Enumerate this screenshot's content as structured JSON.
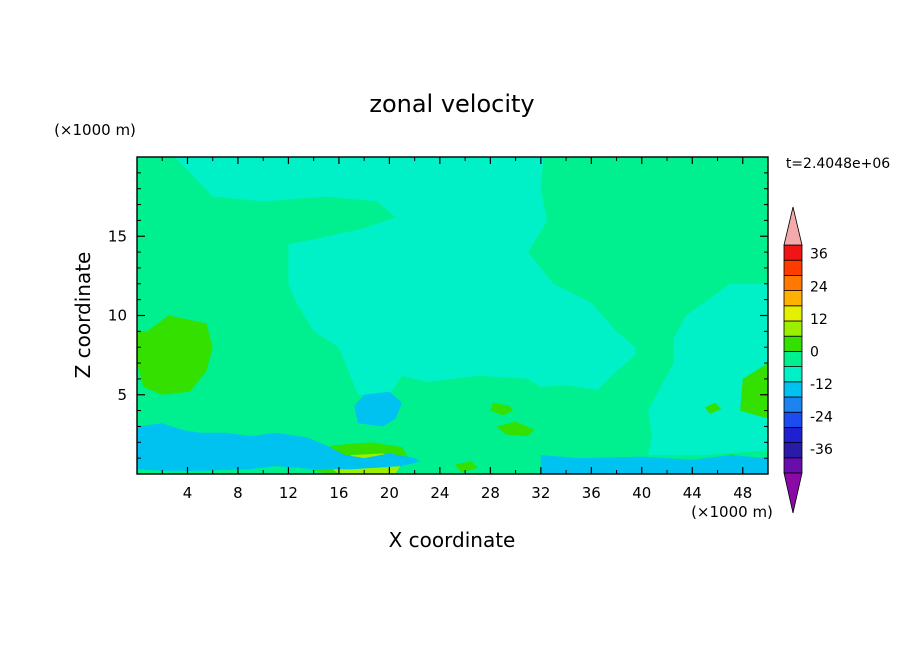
{
  "chart_data": {
    "type": "heatmap",
    "title": "zonal velocity",
    "xlabel": "X coordinate",
    "ylabel": "Z coordinate",
    "x_unit": "(×1000 m)",
    "y_unit": "(×1000 m)",
    "time_label": "t=2.4048e+06",
    "xlim": [
      0,
      50
    ],
    "ylim": [
      0,
      20
    ],
    "x_ticks": [
      4,
      8,
      12,
      16,
      20,
      24,
      28,
      32,
      36,
      40,
      44,
      48
    ],
    "y_ticks": [
      5,
      10,
      15
    ],
    "colorbar": {
      "levels": [
        -42,
        -36,
        -30,
        -24,
        -18,
        -12,
        -6,
        0,
        6,
        12,
        18,
        24,
        30,
        36,
        42
      ],
      "labels": [
        36,
        24,
        12,
        0,
        -12,
        -24,
        -36
      ],
      "colors": [
        "#6a0dad",
        "#2a1aa8",
        "#2020d0",
        "#1a4cf0",
        "#1b84f0",
        "#00c2f0",
        "#00f0c8",
        "#00f090",
        "#33e000",
        "#9af000",
        "#e4f000",
        "#ffb000",
        "#ff7800",
        "#ff3c00",
        "#f01414"
      ],
      "over_color": "#f4aaaa",
      "under_color": "#8a0aa8"
    },
    "regions": [
      {
        "level": 0,
        "polys": [
          [
            [
              0,
              20
            ],
            [
              50,
              20
            ],
            [
              50,
              0
            ],
            [
              0,
              0
            ]
          ]
        ]
      },
      {
        "level": -6,
        "polys": [
          [
            [
              3,
              20
            ],
            [
              6,
              17.5
            ],
            [
              10,
              17.2
            ],
            [
              15,
              17.5
            ],
            [
              19,
              17.2
            ],
            [
              20.5,
              16.2
            ],
            [
              18,
              15.5
            ],
            [
              14,
              14.8
            ],
            [
              12,
              14.5
            ],
            [
              12,
              12
            ],
            [
              12.5,
              11
            ],
            [
              14,
              9
            ],
            [
              16,
              8
            ],
            [
              17,
              6
            ],
            [
              17.5,
              5
            ],
            [
              20,
              5
            ],
            [
              21,
              6.2
            ],
            [
              23,
              5.8
            ],
            [
              27,
              6.2
            ],
            [
              31,
              6
            ],
            [
              32,
              5.5
            ],
            [
              34,
              5.6
            ],
            [
              36.5,
              5.3
            ],
            [
              38,
              6.5
            ],
            [
              39.5,
              7.5
            ],
            [
              39.5,
              8
            ],
            [
              38,
              9
            ],
            [
              36,
              10.8
            ],
            [
              33,
              12
            ],
            [
              31,
              14
            ],
            [
              32.5,
              16
            ],
            [
              32,
              18
            ],
            [
              32.2,
              20
            ]
          ],
          [
            [
              40.5,
              1.2
            ],
            [
              40.8,
              2.5
            ],
            [
              40.5,
              4
            ],
            [
              41.5,
              5.5
            ],
            [
              42.5,
              7
            ],
            [
              42.5,
              8.5
            ],
            [
              43.5,
              10
            ],
            [
              47,
              12
            ],
            [
              50,
              12
            ],
            [
              50,
              1.5
            ],
            [
              45,
              1.2
            ]
          ]
        ]
      },
      {
        "level": 6,
        "polys": [
          [
            [
              0.8,
              9
            ],
            [
              2.5,
              10
            ],
            [
              5.5,
              9.5
            ],
            [
              6,
              8
            ],
            [
              5.5,
              6.5
            ],
            [
              4.2,
              5.2
            ],
            [
              2,
              5
            ],
            [
              0.5,
              5.5
            ],
            [
              0,
              7
            ],
            [
              0,
              9
            ]
          ],
          [
            [
              48,
              6
            ],
            [
              50,
              7
            ],
            [
              50,
              3.5
            ],
            [
              47.8,
              4
            ]
          ],
          [
            [
              46.5,
              1
            ],
            [
              47.2,
              1.3
            ],
            [
              47.5,
              1
            ],
            [
              47.3,
              0.8
            ]
          ],
          [
            [
              13.5,
              1
            ],
            [
              15.5,
              1.8
            ],
            [
              18.5,
              2
            ],
            [
              21,
              1.7
            ],
            [
              21.5,
              1
            ],
            [
              20.8,
              0.5
            ],
            [
              18,
              0
            ],
            [
              15,
              0
            ],
            [
              13,
              0.5
            ]
          ],
          [
            [
              28.2,
              4.5
            ],
            [
              29.5,
              4.3
            ],
            [
              29.8,
              4
            ],
            [
              29,
              3.7
            ],
            [
              28,
              4
            ]
          ],
          [
            [
              28.5,
              3
            ],
            [
              30,
              3.3
            ],
            [
              31.5,
              2.8
            ],
            [
              31,
              2.4
            ],
            [
              29.2,
              2.5
            ]
          ],
          [
            [
              25.2,
              0.6
            ],
            [
              26.5,
              0.8
            ],
            [
              27,
              0.4
            ],
            [
              25.7,
              0.1
            ]
          ],
          [
            [
              45,
              4.2
            ],
            [
              45.8,
              4.5
            ],
            [
              46.3,
              4.1
            ],
            [
              45.4,
              3.8
            ]
          ]
        ]
      },
      {
        "level": 12,
        "polys": [
          [
            [
              15.5,
              0.3
            ],
            [
              17,
              1.2
            ],
            [
              19.5,
              1.3
            ],
            [
              21,
              0.7
            ],
            [
              20.5,
              0
            ],
            [
              16,
              0
            ]
          ]
        ]
      },
      {
        "level": -12,
        "polys": [
          [
            [
              0,
              3
            ],
            [
              2,
              3.2
            ],
            [
              3.5,
              2.8
            ],
            [
              5,
              2.6
            ],
            [
              7,
              2.6
            ],
            [
              9,
              2.4
            ],
            [
              11,
              2.6
            ],
            [
              13.5,
              2.3
            ],
            [
              15,
              1.8
            ],
            [
              16.5,
              1.2
            ],
            [
              18,
              1
            ],
            [
              20,
              1.3
            ],
            [
              22,
              1
            ],
            [
              22.5,
              0.8
            ],
            [
              21,
              0.5
            ],
            [
              17,
              0.3
            ],
            [
              14,
              0.3
            ],
            [
              11,
              0.5
            ],
            [
              9,
              0.3
            ],
            [
              5,
              0.2
            ],
            [
              2,
              0.2
            ],
            [
              0,
              0.3
            ]
          ],
          [
            [
              17.2,
              4.3
            ],
            [
              18,
              5
            ],
            [
              20,
              5.2
            ],
            [
              21,
              4.5
            ],
            [
              20.5,
              3.5
            ],
            [
              19.5,
              3
            ],
            [
              17.5,
              3.2
            ]
          ],
          [
            [
              32,
              1.2
            ],
            [
              35,
              1
            ],
            [
              40,
              1.1
            ],
            [
              44,
              0.9
            ],
            [
              47,
              1.2
            ],
            [
              50,
              1
            ],
            [
              50,
              0
            ],
            [
              32,
              0
            ]
          ]
        ]
      }
    ]
  }
}
